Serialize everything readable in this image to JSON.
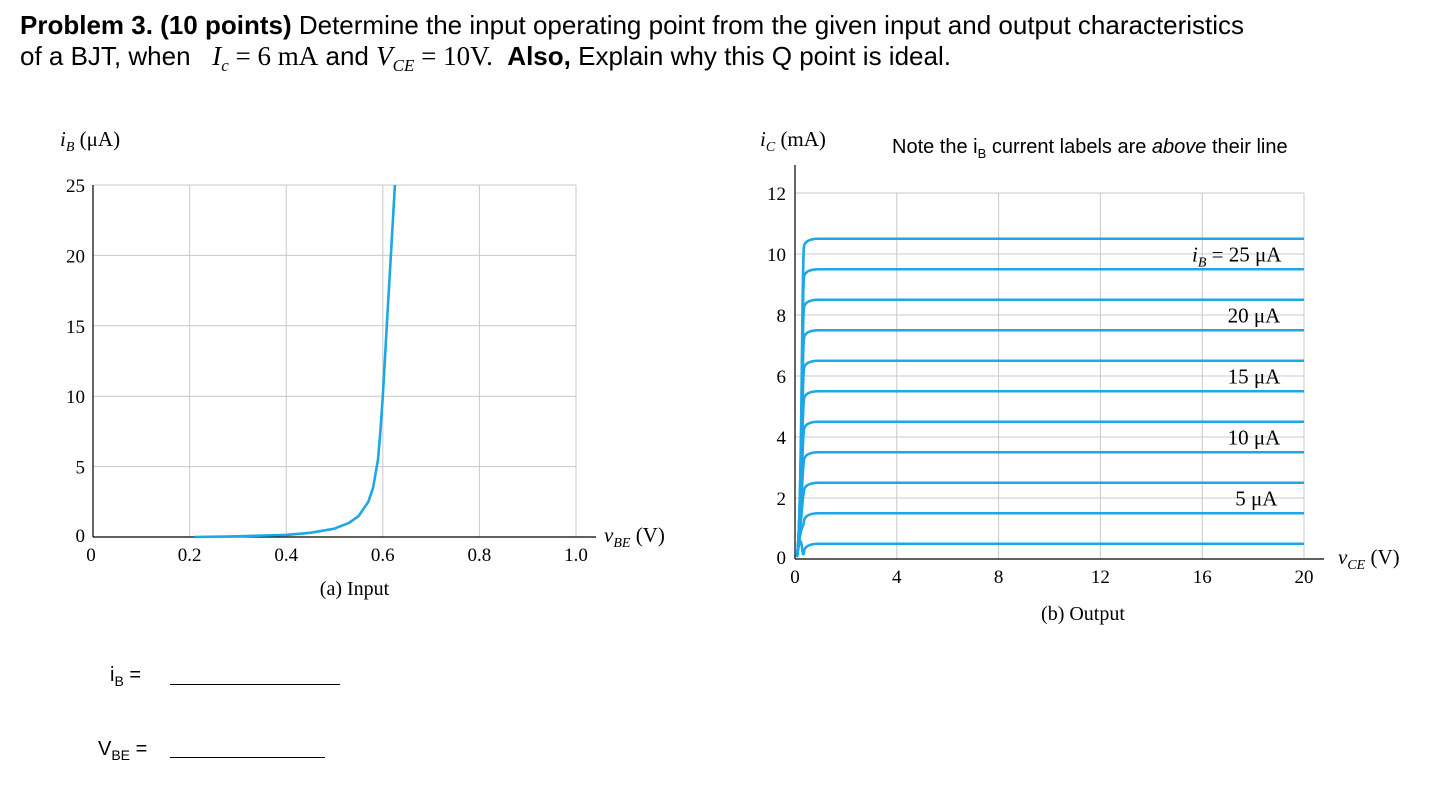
{
  "problem": {
    "label": "Problem 3. (10 points)",
    "text1": "Determine the input operating point from the given input and output characteristics",
    "text2a": "of a BJT, when",
    "ic_symbol": "I",
    "ic_sub": "c",
    "ic_value": "= 6 mA",
    "and_text": "and",
    "vce_symbol": "V",
    "vce_sub": "CE",
    "vce_value": "= 10V.",
    "also_label": "Also,",
    "text2b": "Explain why this Q point is ideal."
  },
  "note": {
    "prefix": "Note the i",
    "sub": "B",
    "middle": " current labels are ",
    "emph": "above",
    "suffix": " their line"
  },
  "answers": {
    "ib_label": "i",
    "ib_sub": "B",
    "ib_eq": " =",
    "vbe_label": "V",
    "vbe_sub": "BE",
    "vbe_eq": " ="
  },
  "colors": {
    "curve": "#1ca7e6",
    "grid": "#c8c8c8",
    "axis": "#000000"
  },
  "chart_data": [
    {
      "type": "line",
      "title": "",
      "caption": "(a) Input",
      "xlabel": "v",
      "xlabel_sub": "BE",
      "xlabel_unit": " (V)",
      "ylabel": "i",
      "ylabel_sub": "B",
      "ylabel_unit": " (μA)",
      "xlim": [
        0,
        1.0
      ],
      "ylim": [
        0,
        25
      ],
      "xticks": [
        0,
        0.2,
        0.4,
        0.6,
        0.8,
        1.0
      ],
      "xtick_labels": [
        "0",
        "0.2",
        "0.4",
        "0.6",
        "0.8",
        "1.0"
      ],
      "yticks": [
        0,
        5,
        10,
        15,
        20,
        25
      ],
      "ytick_labels": [
        "0",
        "5",
        "10",
        "15",
        "20",
        "25"
      ],
      "grid": true,
      "series": [
        {
          "x": [
            0.21,
            0.3,
            0.4,
            0.45,
            0.5,
            0.53,
            0.55,
            0.57,
            0.58,
            0.59,
            0.595,
            0.6,
            0.605,
            0.61,
            0.62,
            0.625
          ],
          "y": [
            0.0,
            0.05,
            0.15,
            0.3,
            0.6,
            1.0,
            1.5,
            2.5,
            3.5,
            5.5,
            7.5,
            10,
            13,
            16,
            22,
            25
          ]
        }
      ]
    },
    {
      "type": "line",
      "title": "",
      "caption": "(b) Output",
      "xlabel": "v",
      "xlabel_sub": "CE",
      "xlabel_unit": " (V)",
      "ylabel": "i",
      "ylabel_sub": "C",
      "ylabel_unit": " (mA)",
      "xlim": [
        0,
        20
      ],
      "ylim": [
        0,
        12
      ],
      "xticks": [
        0,
        4,
        8,
        12,
        16,
        20
      ],
      "xtick_labels": [
        "0",
        "4",
        "8",
        "12",
        "16",
        "20"
      ],
      "yticks": [
        0,
        2,
        4,
        6,
        8,
        10,
        12
      ],
      "ytick_labels": [
        "0",
        "2",
        "4",
        "6",
        "8",
        "10",
        "12"
      ],
      "grid": true,
      "curve_levels_mA": [
        0.5,
        1.5,
        2.5,
        3.5,
        4.5,
        5.5,
        6.5,
        7.5,
        8.5,
        9.5,
        10.5
      ],
      "annotations": [
        {
          "text": "i",
          "sub": "B",
          "rest": " = 25 μA",
          "x": 15.6,
          "y": 9.75
        },
        {
          "text": "20 μA",
          "x": 17.0,
          "y": 7.75
        },
        {
          "text": "15 μA",
          "x": 17.0,
          "y": 5.75
        },
        {
          "text": "10 μA",
          "x": 17.0,
          "y": 3.75
        },
        {
          "text": "5 μA",
          "x": 17.3,
          "y": 1.75
        }
      ]
    }
  ]
}
